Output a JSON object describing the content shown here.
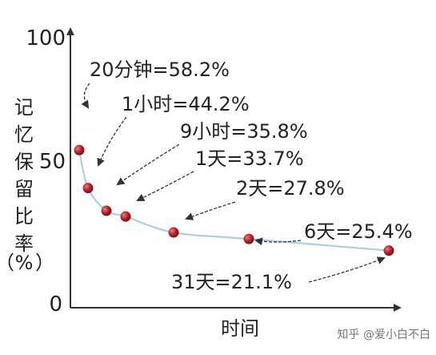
{
  "chart_data": {
    "type": "line",
    "xlabel": "时间",
    "ylabel": "记忆保留比率（%）",
    "ylabel_chars": [
      "记",
      "忆",
      "保",
      "留",
      "比",
      "率",
      "（",
      "%",
      "）"
    ],
    "yticks": [
      "100",
      "50",
      "0"
    ],
    "ylim": [
      0,
      100
    ],
    "grid": false,
    "line_color": "#a8d0e0",
    "marker_color": "#b3202a",
    "points": [
      {
        "label": "20分钟=58.2%",
        "y": 58.2
      },
      {
        "label": "1小时=44.2%",
        "y": 44.2
      },
      {
        "label": "9小时=35.8%",
        "y": 35.8
      },
      {
        "label": "1天=33.7%",
        "y": 33.7
      },
      {
        "label": "2天=27.8%",
        "y": 27.8
      },
      {
        "label": "6天=25.4%",
        "y": 25.4
      },
      {
        "label": "31天=21.1%",
        "y": 21.1
      }
    ]
  },
  "watermark": "知乎 @爱小白不白"
}
